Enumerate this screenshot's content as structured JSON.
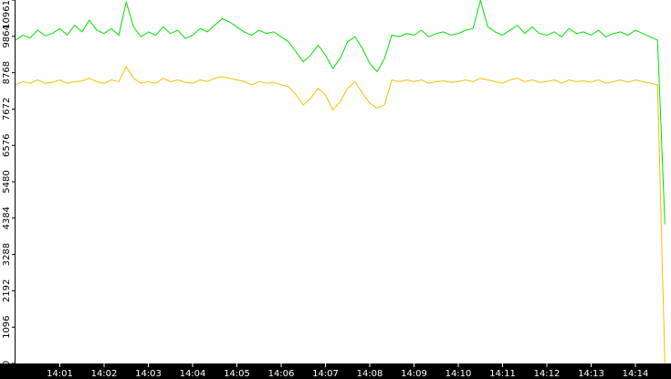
{
  "chart_data": {
    "type": "line",
    "categories": [
      null,
      null,
      null,
      null,
      null,
      null,
      "14:01",
      null,
      null,
      null,
      null,
      null,
      "14:02",
      null,
      null,
      null,
      null,
      null,
      "14:03",
      null,
      null,
      null,
      null,
      null,
      "14:04",
      null,
      null,
      null,
      null,
      null,
      "14:05",
      null,
      null,
      null,
      null,
      null,
      "14:06",
      null,
      null,
      null,
      null,
      null,
      "14:07",
      null,
      null,
      null,
      null,
      null,
      "14:08",
      null,
      null,
      null,
      null,
      null,
      "14:09",
      null,
      null,
      null,
      null,
      null,
      "14:10",
      null,
      null,
      null,
      null,
      null,
      "14:11",
      null,
      null,
      null,
      null,
      null,
      "14:12",
      null,
      null,
      null,
      null,
      null,
      "14:13",
      null,
      null,
      null,
      null,
      null,
      "14:14",
      null,
      null,
      null,
      null
    ],
    "series": [
      {
        "color": "#00e000",
        "values": [
          9750,
          9900,
          9820,
          10050,
          9880,
          9950,
          10100,
          9900,
          10200,
          10000,
          10350,
          10050,
          9950,
          10100,
          9900,
          10900,
          10150,
          9850,
          10000,
          9900,
          10150,
          9950,
          10050,
          9800,
          9900,
          10100,
          10000,
          10200,
          10400,
          10300,
          10150,
          10000,
          9900,
          10050,
          9950,
          10000,
          9850,
          9700,
          9400,
          9100,
          9300,
          9600,
          9300,
          8900,
          9200,
          9700,
          9850,
          9500,
          9050,
          8800,
          9200,
          9900,
          9850,
          9950,
          9900,
          10050,
          9850,
          9950,
          10000,
          9900,
          9950,
          10050,
          10100,
          10950,
          10150,
          10000,
          9900,
          10050,
          10200,
          9950,
          10150,
          9950,
          9900,
          10000,
          9850,
          10100,
          9950,
          10000,
          9900,
          10050,
          9850,
          9950,
          10000,
          9900,
          10050,
          9950,
          9850,
          9750,
          4200
        ]
      },
      {
        "color": "#f0c000",
        "values": [
          8400,
          8500,
          8450,
          8550,
          8450,
          8480,
          8550,
          8450,
          8500,
          8520,
          8600,
          8500,
          8450,
          8550,
          8500,
          8950,
          8600,
          8450,
          8500,
          8450,
          8600,
          8500,
          8550,
          8480,
          8450,
          8550,
          8500,
          8600,
          8650,
          8600,
          8550,
          8500,
          8400,
          8500,
          8450,
          8480,
          8400,
          8350,
          8100,
          7800,
          8000,
          8300,
          8100,
          7650,
          7900,
          8300,
          8500,
          8150,
          7850,
          7700,
          7800,
          8550,
          8500,
          8550,
          8500,
          8550,
          8450,
          8500,
          8520,
          8480,
          8500,
          8550,
          8500,
          8600,
          8550,
          8500,
          8450,
          8550,
          8600,
          8500,
          8550,
          8480,
          8500,
          8550,
          8450,
          8550,
          8500,
          8520,
          8480,
          8550,
          8450,
          8500,
          8550,
          8480,
          8550,
          8500,
          8450,
          8400,
          0
        ]
      }
    ],
    "ylim": [
      0,
      10961
    ],
    "yticks": [
      0,
      1096,
      2192,
      3288,
      4384,
      5480,
      6576,
      7672,
      8768,
      9864,
      10961
    ]
  }
}
